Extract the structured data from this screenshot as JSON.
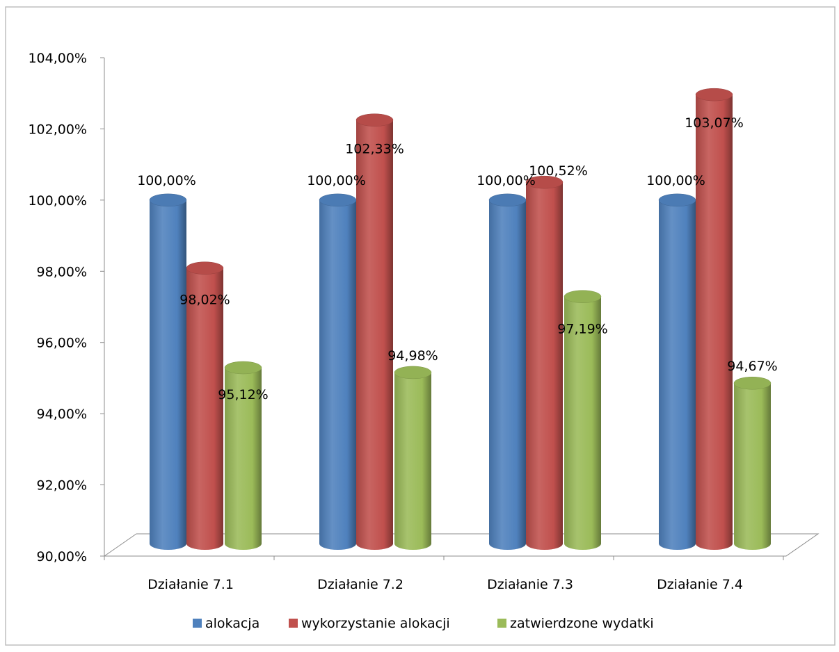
{
  "chart_data": {
    "type": "bar",
    "style": "3d-cylinder",
    "categories": [
      "Działanie 7.1",
      "Działanie 7.2",
      "Działanie 7.3",
      "Działanie 7.4"
    ],
    "series": [
      {
        "name": "alokacja",
        "color": "#4F81BD",
        "values": [
          100.0,
          100.0,
          100.0,
          100.0
        ],
        "labels": [
          "100,00%",
          "100,00%",
          "100,00%",
          "100,00%"
        ]
      },
      {
        "name": "wykorzystanie alokacji",
        "color": "#C0504D",
        "values": [
          98.02,
          102.33,
          100.52,
          103.07
        ],
        "labels": [
          "98,02%",
          "102,33%",
          "100,52%",
          "103,07%"
        ]
      },
      {
        "name": "zatwierdzone wydatki",
        "color": "#9BBB59",
        "values": [
          95.12,
          94.98,
          97.19,
          94.67
        ],
        "labels": [
          "95,12%",
          "94,98%",
          "97,19%",
          "94,67%"
        ]
      }
    ],
    "ylim": [
      90,
      104
    ],
    "yticks": [
      90,
      92,
      94,
      96,
      98,
      100,
      102,
      104
    ],
    "ytick_labels": [
      "90,00%",
      "92,00%",
      "94,00%",
      "96,00%",
      "98,00%",
      "100,00%",
      "102,00%",
      "104,00%"
    ],
    "title": "",
    "xlabel": "",
    "ylabel": "",
    "grid": false,
    "legend_position": "bottom"
  }
}
